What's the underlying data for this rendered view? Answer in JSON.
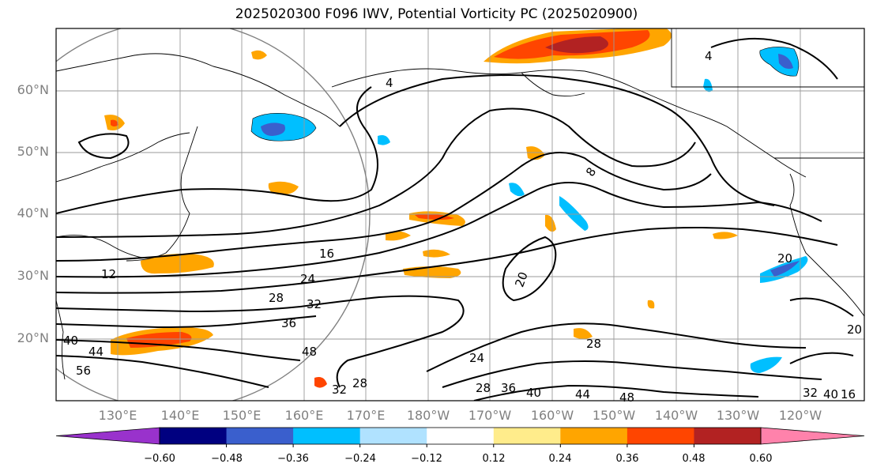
{
  "title": "2025020300 F096 IWV, Potential Vorticity PC (2025020900)",
  "lat_labels": [
    "60°N",
    "50°N",
    "40°N",
    "30°N",
    "20°N"
  ],
  "lon_labels": [
    "130°E",
    "140°E",
    "150°E",
    "160°E",
    "170°E",
    "180°W",
    "170°W",
    "160°W",
    "150°W",
    "140°W",
    "130°W",
    "120°W"
  ],
  "colorbar": {
    "ticks": [
      "−0.60",
      "−0.48",
      "−0.36",
      "−0.24",
      "−0.12",
      "0.12",
      "0.24",
      "0.36",
      "0.48",
      "0.60"
    ],
    "colors": [
      "#9932cc",
      "#000080",
      "#3a5fcd",
      "#00bfff",
      "#b0e2ff",
      "#ffffff",
      "#ffec8b",
      "#ffa500",
      "#ff4500",
      "#b22222",
      "#ff82ab"
    ]
  },
  "contour_labels": [
    "4",
    "8",
    "12",
    "16",
    "20",
    "24",
    "28",
    "32",
    "36",
    "40",
    "44",
    "48",
    "56",
    "28",
    "32",
    "24",
    "28",
    "36",
    "40",
    "44",
    "48",
    "4",
    "20",
    "28",
    "32",
    "40",
    "20",
    "16"
  ]
}
